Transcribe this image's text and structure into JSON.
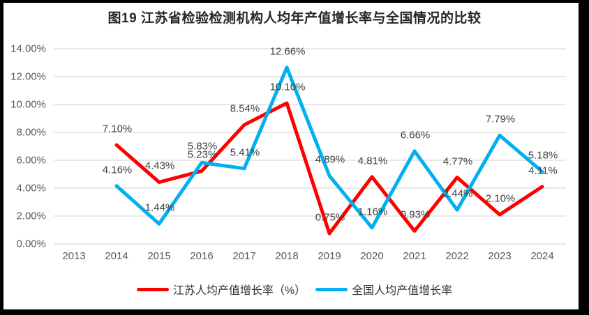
{
  "frame": {
    "border_color": "#000000",
    "background": "#ffffff"
  },
  "chart_data": {
    "type": "line",
    "title": "图19 江苏省检验检测机构人均年产值增长率与全国情况的比较",
    "categories": [
      "2013",
      "2014",
      "2015",
      "2016",
      "2017",
      "2018",
      "2019",
      "2020",
      "2021",
      "2022",
      "2023",
      "2024"
    ],
    "series": [
      {
        "name": "江苏人均产值增长率（%）",
        "color": "#FF0000",
        "values": [
          null,
          7.1,
          4.43,
          5.23,
          8.54,
          10.1,
          0.75,
          4.81,
          0.93,
          4.77,
          2.1,
          4.11
        ],
        "labels": [
          "",
          "7.10%",
          "4.43%",
          "5.23%",
          "8.54%",
          "10.10%",
          "0.75%",
          "4.81%",
          "0.93%",
          "4.77%",
          "2.10%",
          "4.11%"
        ]
      },
      {
        "name": "全国人均产值增长率",
        "color": "#00B0F0",
        "values": [
          null,
          4.16,
          1.44,
          5.83,
          5.41,
          12.66,
          4.89,
          1.16,
          6.66,
          2.44,
          7.79,
          5.18
        ],
        "labels": [
          "",
          "4.16%",
          "1.44%",
          "5.83%",
          "5.41%",
          "12.66%",
          "4.89%",
          "1.16%",
          "6.66%",
          "2.44%",
          "7.79%",
          "5.18%"
        ]
      }
    ],
    "xlabel": "",
    "ylabel": "",
    "ylim": [
      0,
      14
    ],
    "ytick_step": 2,
    "ytick_labels": [
      "0.00%",
      "2.00%",
      "4.00%",
      "6.00%",
      "8.00%",
      "10.00%",
      "12.00%",
      "14.00%"
    ],
    "grid": "horizontal",
    "legend_position": "bottom",
    "data_labels": "above-points",
    "colors": {
      "grid": "#D9D9D9",
      "axis_text": "#595959",
      "data_label_text": "#404040",
      "title_text": "#262626",
      "legend_text": "#333333"
    }
  }
}
